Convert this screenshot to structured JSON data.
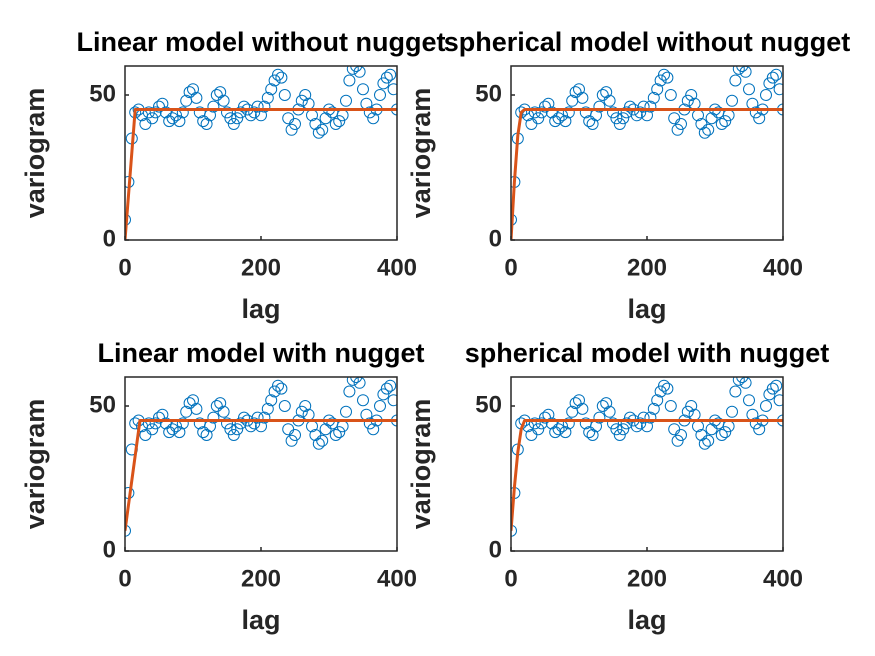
{
  "chart_data": [
    {
      "type": "scatter",
      "title": "Linear model without nugget",
      "xlabel": "lag",
      "ylabel": "variogram",
      "xlim": [
        0,
        400
      ],
      "ylim": [
        0,
        60
      ],
      "xticks": [
        0,
        200,
        400
      ],
      "yticks": [
        0,
        50
      ],
      "box": true,
      "series": [
        {
          "type": "scatter",
          "color": "#0072bd",
          "x": [
            0,
            5,
            10,
            15,
            20,
            25,
            30,
            35,
            40,
            45,
            50,
            55,
            60,
            65,
            70,
            75,
            80,
            85,
            90,
            95,
            100,
            105,
            110,
            115,
            120,
            125,
            130,
            135,
            140,
            145,
            150,
            155,
            160,
            165,
            170,
            175,
            180,
            185,
            190,
            195,
            200,
            205,
            210,
            215,
            220,
            225,
            230,
            235,
            240,
            245,
            250,
            255,
            260,
            265,
            270,
            275,
            280,
            285,
            290,
            295,
            300,
            305,
            310,
            315,
            320,
            325,
            330,
            335,
            340,
            345,
            350,
            355,
            360,
            365,
            370,
            375,
            380,
            385,
            390,
            395,
            400
          ],
          "values": [
            7,
            20,
            35,
            44,
            45,
            43,
            40,
            44,
            42,
            44,
            46,
            47,
            44,
            41,
            42,
            43,
            41,
            44,
            48,
            51,
            52,
            49,
            44,
            41,
            40,
            43,
            46,
            50,
            51,
            48,
            44,
            42,
            40,
            42,
            44,
            46,
            45,
            43,
            44,
            46,
            43,
            46,
            49,
            52,
            55,
            57,
            56,
            50,
            42,
            38,
            40,
            45,
            48,
            50,
            47,
            43,
            40,
            37,
            38,
            42,
            45,
            44,
            40,
            41,
            43,
            48,
            55,
            59,
            60,
            58,
            52,
            47,
            44,
            42,
            45,
            50,
            54,
            56,
            57,
            52,
            45
          ]
        },
        {
          "type": "line",
          "color": "#d95319",
          "x": [
            0,
            15,
            400
          ],
          "values": [
            0,
            45,
            45
          ]
        }
      ]
    },
    {
      "type": "scatter",
      "title": "spherical model without nugget",
      "xlabel": "lag",
      "ylabel": "variogram",
      "xlim": [
        0,
        400
      ],
      "ylim": [
        0,
        60
      ],
      "xticks": [
        0,
        200,
        400
      ],
      "yticks": [
        0,
        50
      ],
      "box": true,
      "series": [
        {
          "type": "scatter",
          "color": "#0072bd",
          "x": [
            0,
            5,
            10,
            15,
            20,
            25,
            30,
            35,
            40,
            45,
            50,
            55,
            60,
            65,
            70,
            75,
            80,
            85,
            90,
            95,
            100,
            105,
            110,
            115,
            120,
            125,
            130,
            135,
            140,
            145,
            150,
            155,
            160,
            165,
            170,
            175,
            180,
            185,
            190,
            195,
            200,
            205,
            210,
            215,
            220,
            225,
            230,
            235,
            240,
            245,
            250,
            255,
            260,
            265,
            270,
            275,
            280,
            285,
            290,
            295,
            300,
            305,
            310,
            315,
            320,
            325,
            330,
            335,
            340,
            345,
            350,
            355,
            360,
            365,
            370,
            375,
            380,
            385,
            390,
            395,
            400
          ],
          "values": [
            7,
            20,
            35,
            44,
            45,
            43,
            40,
            44,
            42,
            44,
            46,
            47,
            44,
            41,
            42,
            43,
            41,
            44,
            48,
            51,
            52,
            49,
            44,
            41,
            40,
            43,
            46,
            50,
            51,
            48,
            44,
            42,
            40,
            42,
            44,
            46,
            45,
            43,
            44,
            46,
            43,
            46,
            49,
            52,
            55,
            57,
            56,
            50,
            42,
            38,
            40,
            45,
            48,
            50,
            47,
            43,
            40,
            37,
            38,
            42,
            45,
            44,
            40,
            41,
            43,
            48,
            55,
            59,
            60,
            58,
            52,
            47,
            44,
            42,
            45,
            50,
            54,
            56,
            57,
            52,
            45
          ]
        },
        {
          "type": "line",
          "color": "#d95319",
          "x": [
            0,
            5,
            10,
            15,
            20,
            400
          ],
          "values": [
            0,
            20,
            36,
            44,
            45,
            45
          ]
        }
      ]
    },
    {
      "type": "scatter",
      "title": "Linear model with nugget",
      "xlabel": "lag",
      "ylabel": "variogram",
      "xlim": [
        0,
        400
      ],
      "ylim": [
        0,
        60
      ],
      "xticks": [
        0,
        200,
        400
      ],
      "yticks": [
        0,
        50
      ],
      "box": true,
      "series": [
        {
          "type": "scatter",
          "color": "#0072bd",
          "x": [
            0,
            5,
            10,
            15,
            20,
            25,
            30,
            35,
            40,
            45,
            50,
            55,
            60,
            65,
            70,
            75,
            80,
            85,
            90,
            95,
            100,
            105,
            110,
            115,
            120,
            125,
            130,
            135,
            140,
            145,
            150,
            155,
            160,
            165,
            170,
            175,
            180,
            185,
            190,
            195,
            200,
            205,
            210,
            215,
            220,
            225,
            230,
            235,
            240,
            245,
            250,
            255,
            260,
            265,
            270,
            275,
            280,
            285,
            290,
            295,
            300,
            305,
            310,
            315,
            320,
            325,
            330,
            335,
            340,
            345,
            350,
            355,
            360,
            365,
            370,
            375,
            380,
            385,
            390,
            395,
            400
          ],
          "values": [
            7,
            20,
            35,
            44,
            45,
            43,
            40,
            44,
            42,
            44,
            46,
            47,
            44,
            41,
            42,
            43,
            41,
            44,
            48,
            51,
            52,
            49,
            44,
            41,
            40,
            43,
            46,
            50,
            51,
            48,
            44,
            42,
            40,
            42,
            44,
            46,
            45,
            43,
            44,
            46,
            43,
            46,
            49,
            52,
            55,
            57,
            56,
            50,
            42,
            38,
            40,
            45,
            48,
            50,
            47,
            43,
            40,
            37,
            38,
            42,
            45,
            44,
            40,
            41,
            43,
            48,
            55,
            59,
            60,
            58,
            52,
            47,
            44,
            42,
            45,
            50,
            54,
            56,
            57,
            52,
            45
          ]
        },
        {
          "type": "line",
          "color": "#d95319",
          "x": [
            0,
            22,
            400
          ],
          "values": [
            7,
            45,
            45
          ]
        }
      ]
    },
    {
      "type": "scatter",
      "title": "spherical model with nugget",
      "xlabel": "lag",
      "ylabel": "variogram",
      "xlim": [
        0,
        400
      ],
      "ylim": [
        0,
        60
      ],
      "xticks": [
        0,
        200,
        400
      ],
      "yticks": [
        0,
        50
      ],
      "box": true,
      "series": [
        {
          "type": "scatter",
          "color": "#0072bd",
          "x": [
            0,
            5,
            10,
            15,
            20,
            25,
            30,
            35,
            40,
            45,
            50,
            55,
            60,
            65,
            70,
            75,
            80,
            85,
            90,
            95,
            100,
            105,
            110,
            115,
            120,
            125,
            130,
            135,
            140,
            145,
            150,
            155,
            160,
            165,
            170,
            175,
            180,
            185,
            190,
            195,
            200,
            205,
            210,
            215,
            220,
            225,
            230,
            235,
            240,
            245,
            250,
            255,
            260,
            265,
            270,
            275,
            280,
            285,
            290,
            295,
            300,
            305,
            310,
            315,
            320,
            325,
            330,
            335,
            340,
            345,
            350,
            355,
            360,
            365,
            370,
            375,
            380,
            385,
            390,
            395,
            400
          ],
          "values": [
            7,
            20,
            35,
            44,
            45,
            43,
            40,
            44,
            42,
            44,
            46,
            47,
            44,
            41,
            42,
            43,
            41,
            44,
            48,
            51,
            52,
            49,
            44,
            41,
            40,
            43,
            46,
            50,
            51,
            48,
            44,
            42,
            40,
            42,
            44,
            46,
            45,
            43,
            44,
            46,
            43,
            46,
            49,
            52,
            55,
            57,
            56,
            50,
            42,
            38,
            40,
            45,
            48,
            50,
            47,
            43,
            40,
            37,
            38,
            42,
            45,
            44,
            40,
            41,
            43,
            48,
            55,
            59,
            60,
            58,
            52,
            47,
            44,
            42,
            45,
            50,
            54,
            56,
            57,
            52,
            45
          ]
        },
        {
          "type": "line",
          "color": "#d95319",
          "x": [
            0,
            5,
            10,
            15,
            20,
            400
          ],
          "values": [
            7,
            22,
            34,
            42,
            45,
            45
          ]
        }
      ]
    }
  ]
}
